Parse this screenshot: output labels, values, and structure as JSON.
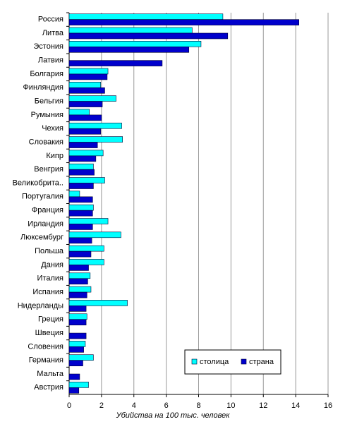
{
  "chart_data": {
    "type": "barh",
    "xlabel": "Убийства на 100 тыс. человек",
    "categories": [
      "Россия",
      "Литва",
      "Эстония",
      "Латвия",
      "Болгария",
      "Финляндия",
      "Бельгия",
      "Румыния",
      "Чехия",
      "Словакия",
      "Кипр",
      "Венгрия",
      "Великобрита..",
      "Португалия",
      "Франция",
      "Ирландия",
      "Люксембург",
      "Польша",
      "Дания",
      "Италия",
      "Испания",
      "Нидерланды",
      "Греция",
      "Швеция",
      "Словения",
      "Германия",
      "Мальта",
      "Австрия"
    ],
    "series": [
      {
        "name": "столица",
        "color": "#00ffff",
        "values": [
          9.5,
          7.6,
          8.15,
          null,
          2.4,
          1.95,
          2.9,
          1.25,
          3.25,
          3.3,
          2.1,
          1.5,
          2.2,
          0.65,
          1.5,
          2.4,
          3.2,
          2.15,
          2.15,
          1.3,
          1.35,
          3.6,
          1.1,
          null,
          1.0,
          1.5,
          null,
          1.2
        ]
      },
      {
        "name": "страна",
        "color": "#0000cc",
        "values": [
          14.2,
          9.8,
          7.4,
          5.75,
          2.35,
          2.2,
          2.05,
          2.0,
          1.95,
          1.75,
          1.65,
          1.55,
          1.5,
          1.45,
          1.45,
          1.45,
          1.4,
          1.35,
          1.2,
          1.15,
          1.1,
          1.05,
          1.05,
          1.05,
          0.9,
          0.85,
          0.65,
          0.6
        ]
      }
    ],
    "xlim": [
      0,
      16
    ],
    "xticks": [
      0,
      2,
      4,
      6,
      8,
      10,
      12,
      14,
      16
    ],
    "grid": true,
    "legend": "lower right"
  }
}
